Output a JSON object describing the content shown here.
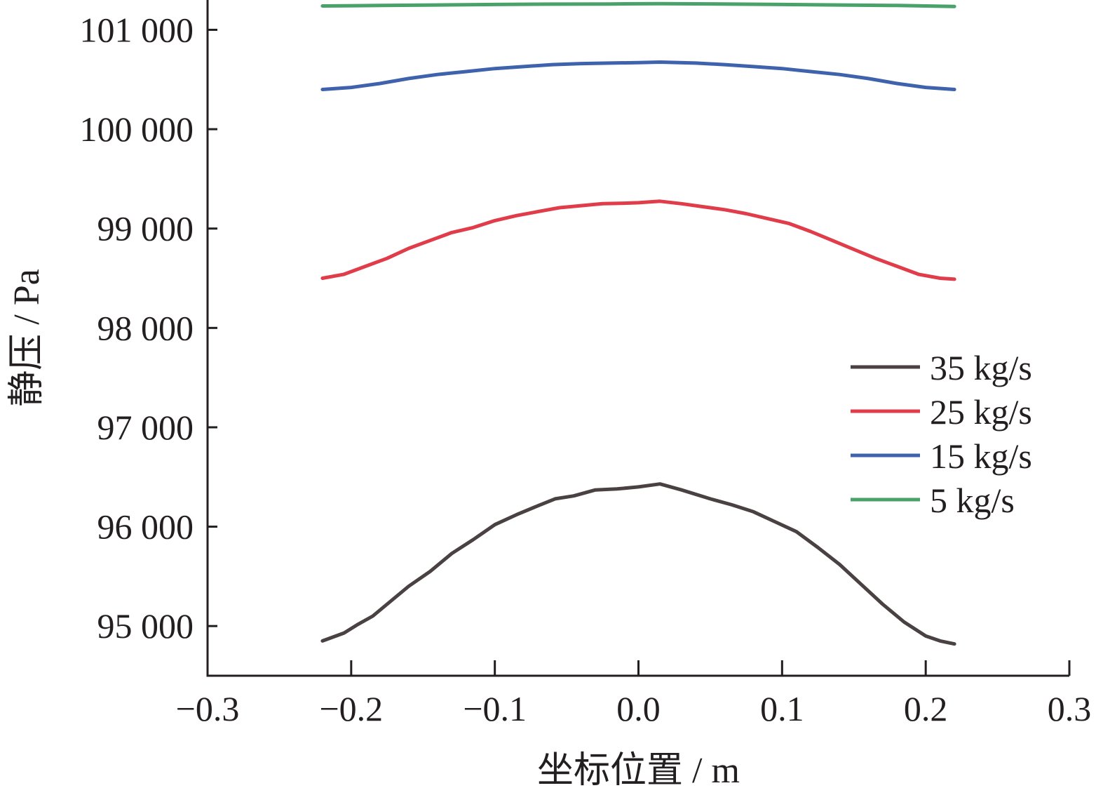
{
  "chart_data": {
    "type": "line",
    "title": "",
    "xlabel": "坐标位置 / m",
    "ylabel": "静压 / Pa",
    "xlim": [
      -0.3,
      0.3
    ],
    "ylim": [
      94500,
      101300
    ],
    "x_ticks": [
      -0.3,
      -0.2,
      -0.1,
      0.0,
      0.1,
      0.2,
      0.3
    ],
    "x_tick_labels": [
      "−0.3",
      "−0.2",
      "−0.1",
      "0.0",
      "0.1",
      "0.2",
      "0.3"
    ],
    "y_ticks": [
      95000,
      96000,
      97000,
      98000,
      99000,
      100000,
      101000
    ],
    "y_tick_labels": [
      "95 000",
      "96 000",
      "97 000",
      "98 000",
      "99 000",
      "100 000",
      "101 000"
    ],
    "grid": false,
    "legend_position": "right",
    "series": [
      {
        "name": "35 kg/s",
        "color": "#4a4242",
        "x": [
          -0.22,
          -0.205,
          -0.195,
          -0.185,
          -0.17,
          -0.16,
          -0.145,
          -0.13,
          -0.115,
          -0.1,
          -0.085,
          -0.07,
          -0.058,
          -0.045,
          -0.03,
          -0.015,
          0.0,
          0.015,
          0.03,
          0.05,
          0.065,
          0.08,
          0.095,
          0.11,
          0.125,
          0.14,
          0.155,
          0.17,
          0.185,
          0.2,
          0.21,
          0.22
        ],
        "values": [
          94850,
          94930,
          95020,
          95100,
          95280,
          95400,
          95550,
          95730,
          95870,
          96020,
          96120,
          96210,
          96280,
          96310,
          96370,
          96380,
          96400,
          96430,
          96370,
          96280,
          96220,
          96150,
          96050,
          95950,
          95790,
          95620,
          95420,
          95220,
          95040,
          94900,
          94850,
          94820
        ]
      },
      {
        "name": "25 kg/s",
        "color": "#e03c4a",
        "x": [
          -0.22,
          -0.205,
          -0.19,
          -0.175,
          -0.16,
          -0.145,
          -0.13,
          -0.115,
          -0.1,
          -0.085,
          -0.07,
          -0.055,
          -0.04,
          -0.025,
          -0.01,
          0.0,
          0.015,
          0.03,
          0.045,
          0.06,
          0.075,
          0.09,
          0.105,
          0.12,
          0.135,
          0.15,
          0.165,
          0.18,
          0.195,
          0.21,
          0.22
        ],
        "values": [
          98500,
          98540,
          98620,
          98700,
          98800,
          98880,
          98960,
          99010,
          99080,
          99130,
          99170,
          99210,
          99230,
          99250,
          99255,
          99260,
          99275,
          99250,
          99220,
          99190,
          99150,
          99100,
          99050,
          98970,
          98880,
          98790,
          98700,
          98620,
          98540,
          98500,
          98490
        ]
      },
      {
        "name": "15 kg/s",
        "color": "#3f62ad",
        "x": [
          -0.22,
          -0.2,
          -0.18,
          -0.16,
          -0.14,
          -0.12,
          -0.1,
          -0.08,
          -0.06,
          -0.04,
          -0.02,
          0.0,
          0.015,
          0.04,
          0.06,
          0.08,
          0.1,
          0.12,
          0.14,
          0.16,
          0.18,
          0.2,
          0.22
        ],
        "values": [
          100400,
          100420,
          100460,
          100510,
          100550,
          100580,
          100610,
          100630,
          100650,
          100660,
          100665,
          100670,
          100675,
          100665,
          100650,
          100630,
          100610,
          100580,
          100550,
          100510,
          100460,
          100420,
          100400
        ]
      },
      {
        "name": "5 kg/s",
        "color": "#4aa16a",
        "x": [
          -0.22,
          -0.18,
          -0.14,
          -0.1,
          -0.06,
          -0.02,
          0.0,
          0.015,
          0.06,
          0.1,
          0.14,
          0.18,
          0.22
        ],
        "values": [
          101240,
          101245,
          101250,
          101255,
          101258,
          101260,
          101262,
          101263,
          101260,
          101255,
          101250,
          101245,
          101235
        ]
      }
    ]
  }
}
